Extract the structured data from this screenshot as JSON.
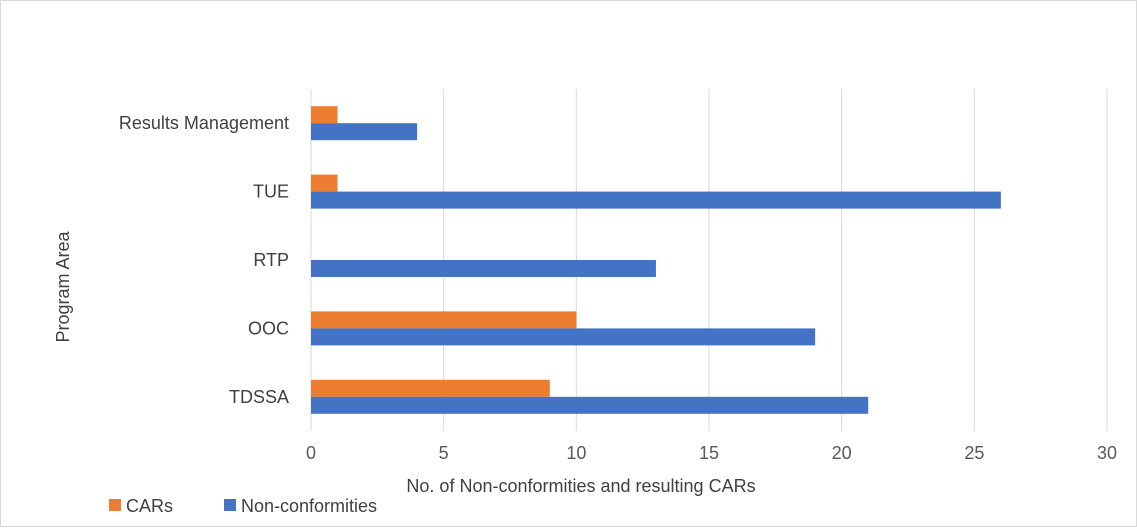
{
  "chart_data": {
    "type": "bar",
    "orientation": "horizontal",
    "categories": [
      "TDSSA",
      "OOC",
      "RTP",
      "TUE",
      "Results Management"
    ],
    "series": [
      {
        "name": "CARs",
        "color": "#ED7D31",
        "values": [
          9,
          10,
          0,
          1,
          1
        ]
      },
      {
        "name": "Non-conformities",
        "color": "#4472C4",
        "values": [
          21,
          19,
          13,
          26,
          4
        ]
      }
    ],
    "xlabel": "No. of Non-conformities and resulting CARs",
    "ylabel": "Program Area",
    "xlim": [
      0,
      30
    ],
    "xticks": [
      "0",
      "5",
      "10",
      "15",
      "20",
      "25",
      "30"
    ],
    "grid": true,
    "legend_position": "bottom-left",
    "title": ""
  }
}
